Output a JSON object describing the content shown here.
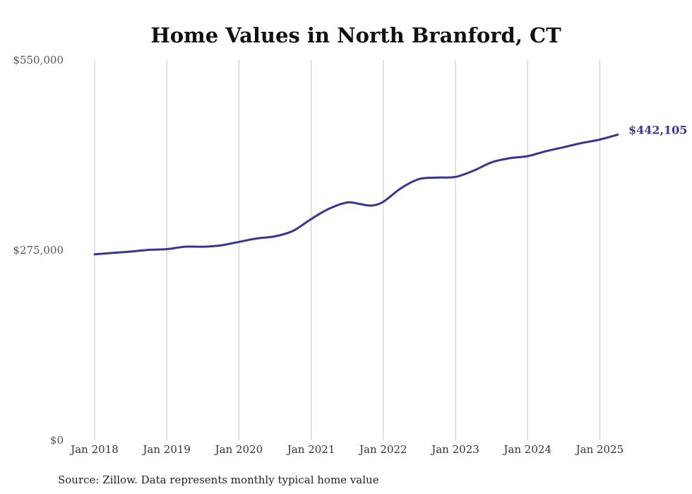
{
  "chart_data": {
    "type": "line",
    "title": "Home Values in North Branford, CT",
    "xlabel": "",
    "ylabel": "",
    "ylim": [
      0,
      550000
    ],
    "yticks": [
      {
        "value": 0,
        "label": "$0"
      },
      {
        "value": 275000,
        "label": "$275,000"
      },
      {
        "value": 550000,
        "label": "$550,000"
      }
    ],
    "xticks": [
      "Jan 2018",
      "Jan 2019",
      "Jan 2020",
      "Jan 2021",
      "Jan 2022",
      "Jan 2023",
      "Jan 2024",
      "Jan 2025"
    ],
    "grid": "vertical",
    "series": [
      {
        "color": "#3a3591",
        "points": [
          [
            "2018-01",
            269000
          ],
          [
            "2018-04",
            271000
          ],
          [
            "2018-07",
            273000
          ],
          [
            "2018-10",
            275500
          ],
          [
            "2019-01",
            276500
          ],
          [
            "2019-04",
            280000
          ],
          [
            "2019-07",
            280000
          ],
          [
            "2019-10",
            282000
          ],
          [
            "2020-01",
            287000
          ],
          [
            "2020-04",
            292000
          ],
          [
            "2020-07",
            295000
          ],
          [
            "2020-10",
            303000
          ],
          [
            "2021-01",
            320000
          ],
          [
            "2021-04",
            335000
          ],
          [
            "2021-07",
            344000
          ],
          [
            "2021-09",
            342000
          ],
          [
            "2021-11",
            339500
          ],
          [
            "2022-01",
            345000
          ],
          [
            "2022-04",
            365000
          ],
          [
            "2022-07",
            378000
          ],
          [
            "2022-10",
            380000
          ],
          [
            "2023-01",
            381000
          ],
          [
            "2023-04",
            390000
          ],
          [
            "2023-07",
            402000
          ],
          [
            "2023-10",
            408000
          ],
          [
            "2024-01",
            411000
          ],
          [
            "2024-04",
            418000
          ],
          [
            "2024-07",
            424000
          ],
          [
            "2024-10",
            430000
          ],
          [
            "2025-01",
            435000
          ],
          [
            "2025-04",
            442105
          ]
        ]
      }
    ],
    "end_label": "$442,105",
    "source": "Source: Zillow. Data represents monthly typical home value"
  }
}
